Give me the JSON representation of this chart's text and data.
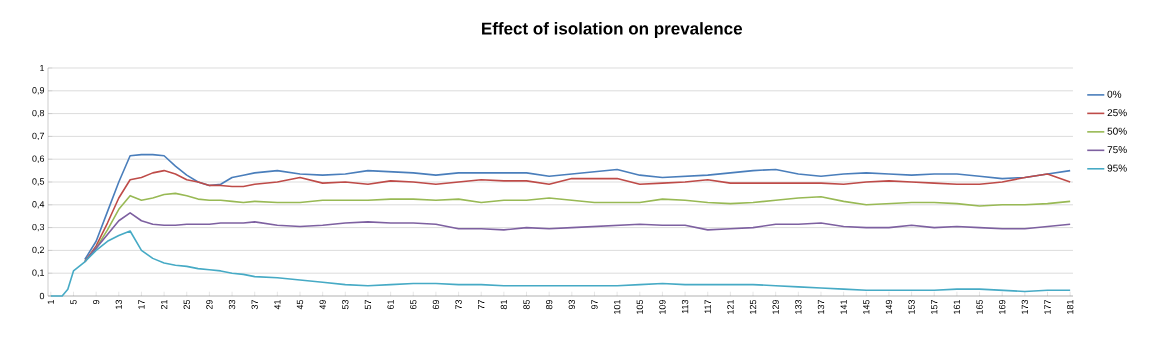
{
  "chart_data": {
    "type": "line",
    "title": "Effect of isolation on prevalence",
    "legend": "right",
    "grid": "y",
    "marker": "none",
    "line_style": "solid",
    "x": [
      1,
      3,
      4,
      5,
      7,
      9,
      11,
      13,
      15,
      17,
      19,
      21,
      23,
      25,
      27,
      29,
      31,
      33,
      35,
      37,
      41,
      45,
      49,
      53,
      57,
      61,
      65,
      69,
      73,
      77,
      81,
      85,
      89,
      93,
      97,
      101,
      105,
      109,
      113,
      117,
      121,
      125,
      129,
      133,
      137,
      141,
      145,
      149,
      153,
      157,
      161,
      165,
      169,
      173,
      177,
      181
    ],
    "xlim": [
      0.5,
      181.5
    ],
    "xticks": [
      1,
      5,
      9,
      13,
      17,
      21,
      25,
      29,
      33,
      37,
      41,
      45,
      49,
      53,
      57,
      61,
      65,
      69,
      73,
      77,
      81,
      85,
      89,
      93,
      97,
      101,
      105,
      109,
      113,
      117,
      121,
      125,
      129,
      133,
      137,
      141,
      145,
      149,
      153,
      157,
      161,
      165,
      169,
      173,
      177,
      181
    ],
    "ylim": [
      0,
      1
    ],
    "yticks": [
      0,
      {
        "value": 0.1,
        "label": "0,1"
      },
      {
        "value": 0.2,
        "label": "0,2"
      },
      {
        "value": 0.3,
        "label": "0,3"
      },
      {
        "value": 0.4,
        "label": "0,4"
      },
      {
        "value": 0.5,
        "label": "0,5"
      },
      {
        "value": 0.6,
        "label": "0,6"
      },
      {
        "value": 0.7,
        "label": "0,7"
      },
      {
        "value": 0.8,
        "label": "0,8"
      },
      {
        "value": 0.9,
        "label": "0,9"
      },
      1
    ],
    "series": [
      {
        "name": "0%",
        "color": "#4a7ebb",
        "values": [
          null,
          null,
          null,
          null,
          0.16,
          0.24,
          0.37,
          0.5,
          0.615,
          0.62,
          0.62,
          0.615,
          0.57,
          0.53,
          0.5,
          0.485,
          0.49,
          0.52,
          0.53,
          0.54,
          0.55,
          0.535,
          0.53,
          0.535,
          0.55,
          0.545,
          0.54,
          0.53,
          0.54,
          0.54,
          0.54,
          0.54,
          0.525,
          0.535,
          0.545,
          0.555,
          0.53,
          0.52,
          0.525,
          0.53,
          0.54,
          0.55,
          0.555,
          0.535,
          0.525,
          0.535,
          0.54,
          0.535,
          0.53,
          0.535,
          0.535,
          0.525,
          0.515,
          0.52,
          0.535,
          0.55
        ]
      },
      {
        "name": "25%",
        "color": "#be4b48",
        "values": [
          null,
          null,
          null,
          null,
          0.15,
          0.22,
          0.32,
          0.43,
          0.51,
          0.52,
          0.54,
          0.55,
          0.535,
          0.51,
          0.5,
          0.485,
          0.485,
          0.48,
          0.48,
          0.49,
          0.5,
          0.52,
          0.495,
          0.5,
          0.49,
          0.505,
          0.5,
          0.49,
          0.5,
          0.51,
          0.505,
          0.505,
          0.49,
          0.515,
          0.515,
          0.515,
          0.49,
          0.495,
          0.5,
          0.51,
          0.495,
          0.495,
          0.495,
          0.495,
          0.495,
          0.49,
          0.5,
          0.505,
          0.5,
          0.495,
          0.49,
          0.49,
          0.5,
          0.52,
          0.535,
          0.5
        ]
      },
      {
        "name": "50%",
        "color": "#98b954",
        "values": [
          null,
          null,
          null,
          null,
          0.15,
          0.21,
          0.29,
          0.38,
          0.44,
          0.42,
          0.43,
          0.445,
          0.45,
          0.44,
          0.425,
          0.42,
          0.42,
          0.415,
          0.41,
          0.415,
          0.41,
          0.41,
          0.42,
          0.42,
          0.42,
          0.425,
          0.425,
          0.42,
          0.425,
          0.41,
          0.42,
          0.42,
          0.43,
          0.42,
          0.41,
          0.41,
          0.41,
          0.425,
          0.42,
          0.41,
          0.405,
          0.41,
          0.42,
          0.43,
          0.435,
          0.415,
          0.4,
          0.405,
          0.41,
          0.41,
          0.405,
          0.395,
          0.4,
          0.4,
          0.405,
          0.415
        ]
      },
      {
        "name": "75%",
        "color": "#7d60a0",
        "values": [
          null,
          null,
          null,
          null,
          0.15,
          0.21,
          0.27,
          0.33,
          0.365,
          0.33,
          0.315,
          0.31,
          0.31,
          0.315,
          0.315,
          0.315,
          0.32,
          0.32,
          0.32,
          0.325,
          0.31,
          0.305,
          0.31,
          0.32,
          0.325,
          0.32,
          0.32,
          0.315,
          0.295,
          0.295,
          0.29,
          0.3,
          0.295,
          0.3,
          0.305,
          0.31,
          0.315,
          0.31,
          0.31,
          0.29,
          0.295,
          0.3,
          0.315,
          0.315,
          0.32,
          0.305,
          0.3,
          0.3,
          0.31,
          0.3,
          0.305,
          0.3,
          0.295,
          0.295,
          0.305,
          0.315
        ]
      },
      {
        "name": "95%",
        "color": "#46aac5",
        "values": [
          0,
          0,
          0.03,
          0.11,
          0.15,
          0.2,
          0.24,
          0.265,
          0.285,
          0.2,
          0.165,
          0.145,
          0.135,
          0.13,
          0.12,
          0.115,
          0.11,
          0.1,
          0.095,
          0.085,
          0.08,
          0.07,
          0.06,
          0.05,
          0.045,
          0.05,
          0.055,
          0.055,
          0.05,
          0.05,
          0.045,
          0.045,
          0.045,
          0.045,
          0.045,
          0.045,
          0.05,
          0.055,
          0.05,
          0.05,
          0.05,
          0.05,
          0.045,
          0.04,
          0.035,
          0.03,
          0.025,
          0.025,
          0.025,
          0.025,
          0.03,
          0.03,
          0.025,
          0.02,
          0.025,
          0.025
        ]
      }
    ]
  }
}
